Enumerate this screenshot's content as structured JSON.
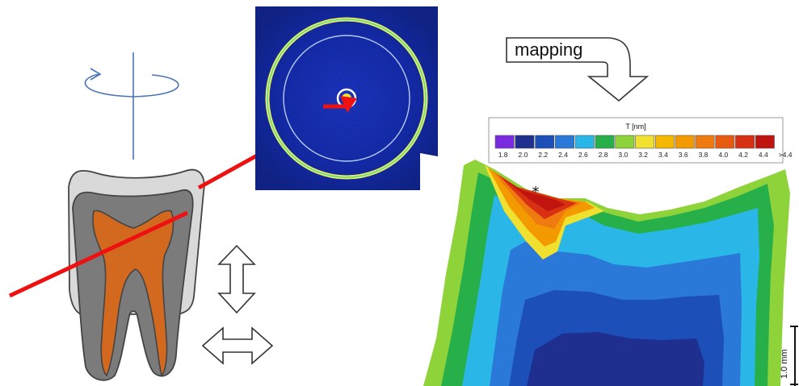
{
  "mapping_label": "mapping",
  "legend": {
    "title": "T [nm]",
    "ticks": [
      "1.8",
      "2.0",
      "2.2",
      "2.4",
      "2.6",
      "2.8",
      "3.0",
      "3.2",
      "3.4",
      "3.6",
      "3.8",
      "4.0",
      "4.2",
      "4.4",
      ">4.4"
    ],
    "colors": [
      "#7a2be0",
      "#1f2f8f",
      "#1d4fb8",
      "#2a78d8",
      "#2bb6e8",
      "#27b04a",
      "#8fd33a",
      "#f0e030",
      "#f5b800",
      "#f29a00",
      "#ef7a10",
      "#e85a10",
      "#d83012",
      "#c0140f"
    ]
  },
  "scale_bar_label": "1.0 mm",
  "marker": "*",
  "colors": {
    "beam": "#ee1111",
    "outline": "#4a74b8",
    "enamel": "#d9d9d9",
    "dentin": "#7b7b7b",
    "pulp": "#d2691e",
    "detector_bg": "#0a1a8c",
    "ring": "#e8f060"
  },
  "icons": [
    "rotation-axis-icon",
    "vertical-double-arrow-icon",
    "horizontal-double-arrow-icon",
    "mapping-arrow-icon"
  ]
}
